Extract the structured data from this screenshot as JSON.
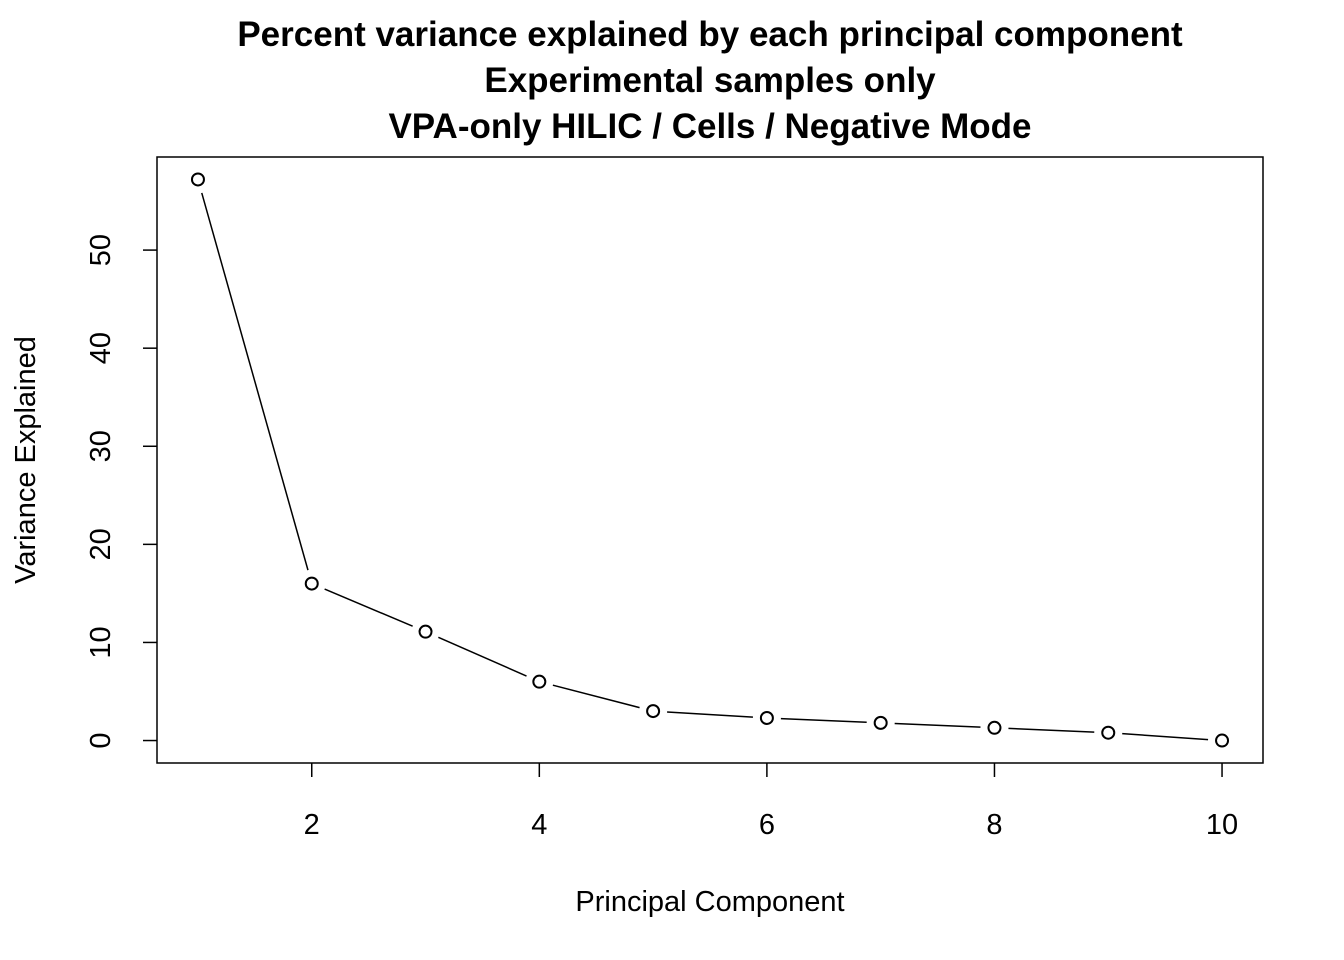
{
  "chart_data": {
    "type": "line",
    "title_lines": [
      "Percent variance explained by each principal component",
      "Experimental samples only",
      "VPA-only HILIC / Cells / Negative Mode"
    ],
    "xlabel": "Principal Component",
    "ylabel": "Variance Explained",
    "x": [
      1,
      2,
      3,
      4,
      5,
      6,
      7,
      8,
      9,
      10
    ],
    "series": [
      {
        "values": [
          57.2,
          16.0,
          11.1,
          6.0,
          3.0,
          2.3,
          1.8,
          1.3,
          0.8,
          0.0
        ]
      }
    ],
    "xticks": [
      2,
      4,
      6,
      8,
      10
    ],
    "yticks": [
      0,
      10,
      20,
      30,
      40,
      50
    ],
    "xlim": [
      0.64,
      10.36
    ],
    "ylim": [
      -2.29,
      59.49
    ],
    "grid": false,
    "marker": "open-circle",
    "line_color": "#000000"
  }
}
